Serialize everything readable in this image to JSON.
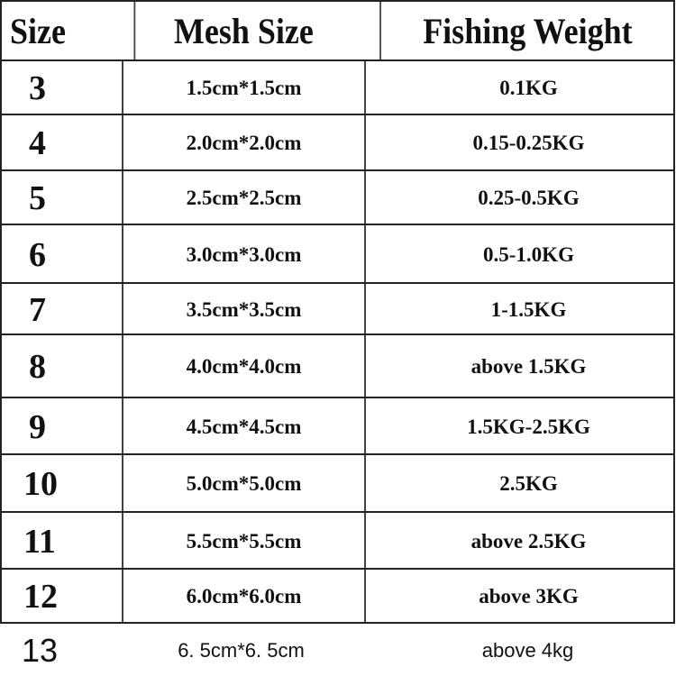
{
  "table": {
    "headers": [
      "Size",
      "Mesh Size",
      "Fishing Weight"
    ],
    "rows": [
      [
        "3",
        "1.5cm*1.5cm",
        "0.1KG"
      ],
      [
        "4",
        "2.0cm*2.0cm",
        "0.15-0.25KG"
      ],
      [
        "5",
        "2.5cm*2.5cm",
        "0.25-0.5KG"
      ],
      [
        "6",
        "3.0cm*3.0cm",
        "0.5-1.0KG"
      ],
      [
        "7",
        "3.5cm*3.5cm",
        "1-1.5KG"
      ],
      [
        "8",
        "4.0cm*4.0cm",
        "above 1.5KG"
      ],
      [
        "9",
        "4.5cm*4.5cm",
        "1.5KG-2.5KG"
      ],
      [
        "10",
        "5.0cm*5.0cm",
        "2.5KG"
      ],
      [
        "11",
        "5.5cm*5.5cm",
        "above 2.5KG"
      ],
      [
        "12",
        "6.0cm*6.0cm",
        "above 3KG"
      ],
      [
        "13",
        "6. 5cm*6. 5cm",
        "above  4kg"
      ]
    ]
  }
}
